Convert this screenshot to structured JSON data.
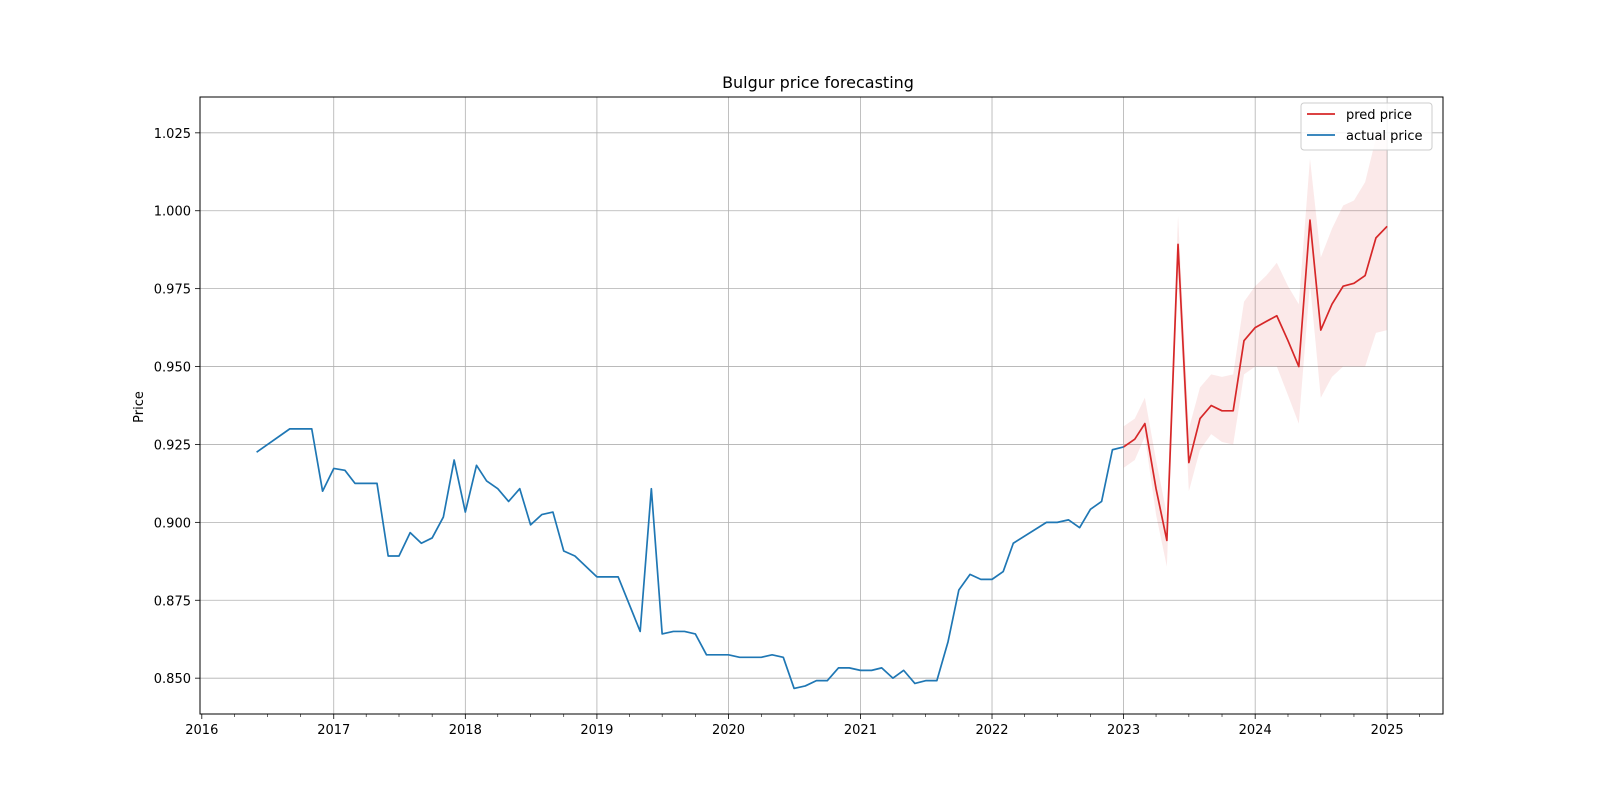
{
  "chart_data": {
    "type": "line",
    "title": "Bulgur price forecasting",
    "xlabel": "",
    "ylabel": "Price",
    "x_axis_type": "date",
    "xlim": [
      "2015-12-27",
      "2025-06-05"
    ],
    "ylim": [
      0.8385,
      1.0365
    ],
    "x_ticks": [
      "2016-01-01",
      "2017-01-01",
      "2018-01-01",
      "2019-01-01",
      "2020-01-01",
      "2021-01-01",
      "2022-01-01",
      "2023-01-01",
      "2024-01-01",
      "2025-01-01"
    ],
    "x_tick_labels": [
      "2016",
      "2017",
      "2018",
      "2019",
      "2020",
      "2021",
      "2022",
      "2023",
      "2024",
      "2025"
    ],
    "y_ticks": [
      0.85,
      0.875,
      0.9,
      0.925,
      0.95,
      0.975,
      1.0,
      1.025
    ],
    "y_tick_labels": [
      "0.850",
      "0.875",
      "0.900",
      "0.925",
      "0.950",
      "0.975",
      "1.000",
      "1.025"
    ],
    "grid": true,
    "legend_position": "top-right",
    "series": [
      {
        "name": "actual price",
        "color": "#1f77b4",
        "points": [
          [
            "2016-06-01",
            0.9225
          ],
          [
            "2016-09-01",
            0.93
          ],
          [
            "2016-11-01",
            0.93
          ],
          [
            "2016-12-01",
            0.91
          ],
          [
            "2017-01-01",
            0.9173
          ],
          [
            "2017-02-01",
            0.9167
          ],
          [
            "2017-03-01",
            0.9125
          ],
          [
            "2017-04-01",
            0.9125
          ],
          [
            "2017-05-01",
            0.9125
          ],
          [
            "2017-06-01",
            0.8892
          ],
          [
            "2017-07-01",
            0.8892
          ],
          [
            "2017-08-01",
            0.8967
          ],
          [
            "2017-09-01",
            0.8933
          ],
          [
            "2017-10-01",
            0.895
          ],
          [
            "2017-11-01",
            0.9017
          ],
          [
            "2017-12-01",
            0.92
          ],
          [
            "2018-01-01",
            0.9033
          ],
          [
            "2018-02-01",
            0.9183
          ],
          [
            "2018-03-01",
            0.9133
          ],
          [
            "2018-04-01",
            0.9108
          ],
          [
            "2018-05-01",
            0.9067
          ],
          [
            "2018-06-01",
            0.9108
          ],
          [
            "2018-07-01",
            0.8992
          ],
          [
            "2018-08-01",
            0.9025
          ],
          [
            "2018-09-01",
            0.9033
          ],
          [
            "2018-10-01",
            0.8908
          ],
          [
            "2018-11-01",
            0.8892
          ],
          [
            "2019-01-01",
            0.8825
          ],
          [
            "2019-02-01",
            0.8825
          ],
          [
            "2019-03-01",
            0.8825
          ],
          [
            "2019-05-01",
            0.865
          ],
          [
            "2019-06-01",
            0.9108
          ],
          [
            "2019-07-01",
            0.8642
          ],
          [
            "2019-08-01",
            0.865
          ],
          [
            "2019-09-01",
            0.865
          ],
          [
            "2019-10-01",
            0.8642
          ],
          [
            "2019-11-01",
            0.8575
          ],
          [
            "2019-12-01",
            0.8575
          ],
          [
            "2020-01-01",
            0.8575
          ],
          [
            "2020-02-01",
            0.8567
          ],
          [
            "2020-03-01",
            0.8567
          ],
          [
            "2020-04-01",
            0.8567
          ],
          [
            "2020-05-01",
            0.8575
          ],
          [
            "2020-06-01",
            0.8567
          ],
          [
            "2020-07-01",
            0.8467
          ],
          [
            "2020-08-01",
            0.8475
          ],
          [
            "2020-09-01",
            0.8492
          ],
          [
            "2020-10-01",
            0.8492
          ],
          [
            "2020-11-01",
            0.8533
          ],
          [
            "2020-12-01",
            0.8533
          ],
          [
            "2021-01-01",
            0.8525
          ],
          [
            "2021-02-01",
            0.8525
          ],
          [
            "2021-03-01",
            0.8533
          ],
          [
            "2021-04-01",
            0.85
          ],
          [
            "2021-05-01",
            0.8525
          ],
          [
            "2021-06-01",
            0.8483
          ],
          [
            "2021-07-01",
            0.8492
          ],
          [
            "2021-08-01",
            0.8492
          ],
          [
            "2021-09-01",
            0.8617
          ],
          [
            "2021-10-01",
            0.8783
          ],
          [
            "2021-11-01",
            0.8833
          ],
          [
            "2021-12-01",
            0.8817
          ],
          [
            "2022-01-01",
            0.8817
          ],
          [
            "2022-02-01",
            0.8842
          ],
          [
            "2022-03-01",
            0.8933
          ],
          [
            "2022-06-01",
            0.9
          ],
          [
            "2022-07-01",
            0.9
          ],
          [
            "2022-08-01",
            0.9008
          ],
          [
            "2022-09-01",
            0.8983
          ],
          [
            "2022-10-01",
            0.9042
          ],
          [
            "2022-11-01",
            0.9067
          ],
          [
            "2022-12-01",
            0.9233
          ],
          [
            "2023-01-01",
            0.9242
          ]
        ]
      },
      {
        "name": "pred price",
        "color": "#d62728",
        "points": [
          [
            "2023-01-01",
            0.9242
          ],
          [
            "2023-02-01",
            0.9267
          ],
          [
            "2023-03-01",
            0.9317
          ],
          [
            "2023-04-01",
            0.9108
          ],
          [
            "2023-05-01",
            0.8942
          ],
          [
            "2023-06-01",
            0.9892
          ],
          [
            "2023-07-01",
            0.9192
          ],
          [
            "2023-08-01",
            0.9333
          ],
          [
            "2023-09-01",
            0.9375
          ],
          [
            "2023-10-01",
            0.9358
          ],
          [
            "2023-11-01",
            0.9358
          ],
          [
            "2023-12-01",
            0.9583
          ],
          [
            "2024-01-01",
            0.9625
          ],
          [
            "2024-02-01",
            0.9645
          ],
          [
            "2024-03-01",
            0.9663
          ],
          [
            "2024-04-01",
            0.9583
          ],
          [
            "2024-05-01",
            0.95
          ],
          [
            "2024-06-01",
            0.997
          ],
          [
            "2024-07-01",
            0.9617
          ],
          [
            "2024-08-01",
            0.97
          ],
          [
            "2024-09-01",
            0.9758
          ],
          [
            "2024-10-01",
            0.9767
          ],
          [
            "2024-11-01",
            0.9792
          ],
          [
            "2024-12-01",
            0.9913
          ],
          [
            "2025-01-01",
            0.995
          ]
        ],
        "interval": {
          "color": "#d62728",
          "lower": [
            0.9175,
            0.92,
            0.9275,
            0.9025,
            0.8858,
            0.98,
            0.91,
            0.9233,
            0.9283,
            0.9258,
            0.925,
            0.9475,
            0.95,
            0.95,
            0.95,
            0.9408,
            0.9317,
            0.9767,
            0.94,
            0.9467,
            0.95,
            0.95,
            0.95,
            0.9608,
            0.9617
          ],
          "upper": [
            0.9308,
            0.9333,
            0.94,
            0.92,
            0.9025,
            0.9983,
            0.93,
            0.9433,
            0.9475,
            0.9467,
            0.9475,
            0.9708,
            0.9758,
            0.9792,
            0.9833,
            0.9758,
            0.97,
            1.0167,
            0.985,
            0.9942,
            1.0017,
            1.0033,
            1.0092,
            1.0233,
            1.025
          ]
        }
      }
    ]
  }
}
